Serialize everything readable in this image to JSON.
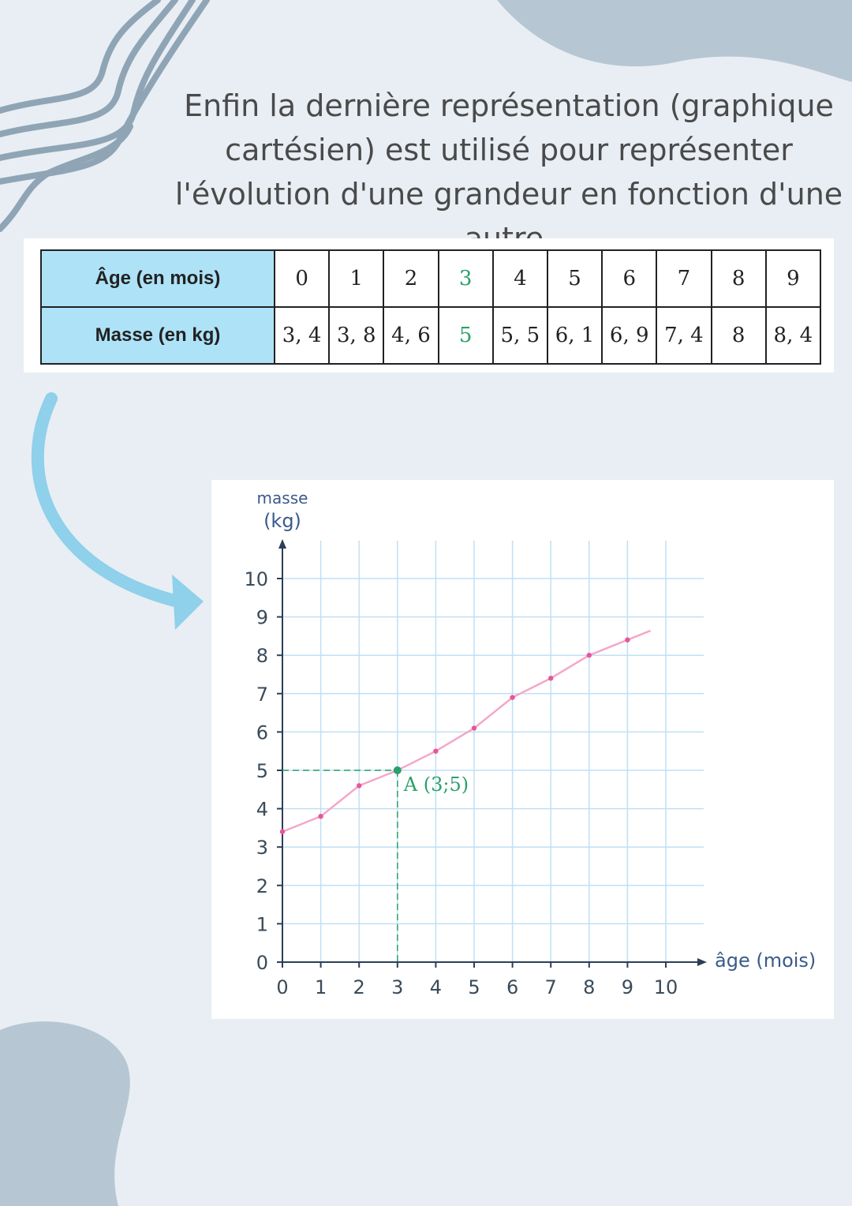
{
  "intro_text": "Enfin la dernière représentation (graphique cartésien) est utilisé pour représenter l'évolution d'une grandeur en fonction d'une autre.",
  "table": {
    "row1_label": "Âge (en mois)",
    "row2_label": "Masse (en kg)",
    "ages": [
      "0",
      "1",
      "2",
      "3",
      "4",
      "5",
      "6",
      "7",
      "8",
      "9"
    ],
    "masses": [
      "3, 4",
      "3, 8",
      "4, 6",
      "5",
      "5, 5",
      "6, 1",
      "6, 9",
      "7, 4",
      "8",
      "8, 4"
    ],
    "highlight_index": 3
  },
  "colors": {
    "background": "#e8eef4",
    "table_header": "#aee2f7",
    "curve": "#f4a7c9",
    "point": "#e8569b",
    "highlight": "#2aa06a",
    "grid": "#bfe0f5",
    "blob": "#b6c7d3",
    "arrow": "#8fd0ea"
  },
  "chart_data": {
    "type": "line",
    "x": [
      0,
      1,
      2,
      3,
      4,
      5,
      6,
      7,
      8,
      9
    ],
    "series": [
      {
        "values": [
          3.4,
          3.8,
          4.6,
          5,
          5.5,
          6.1,
          6.9,
          7.4,
          8,
          8.4
        ]
      }
    ],
    "xlabel": "âge (mois)",
    "ylabel_line1": "masse",
    "ylabel_line2": "(kg)",
    "xlim": [
      0,
      10
    ],
    "ylim": [
      0,
      10
    ],
    "x_ticks": [
      "0",
      "1",
      "2",
      "3",
      "4",
      "5",
      "6",
      "7",
      "8",
      "9",
      "10"
    ],
    "y_ticks": [
      "0",
      "1",
      "2",
      "3",
      "4",
      "5",
      "6",
      "7",
      "8",
      "9",
      "10"
    ],
    "grid": true,
    "annotation": {
      "label": "A (3;5)",
      "x": 3,
      "y": 5
    }
  }
}
